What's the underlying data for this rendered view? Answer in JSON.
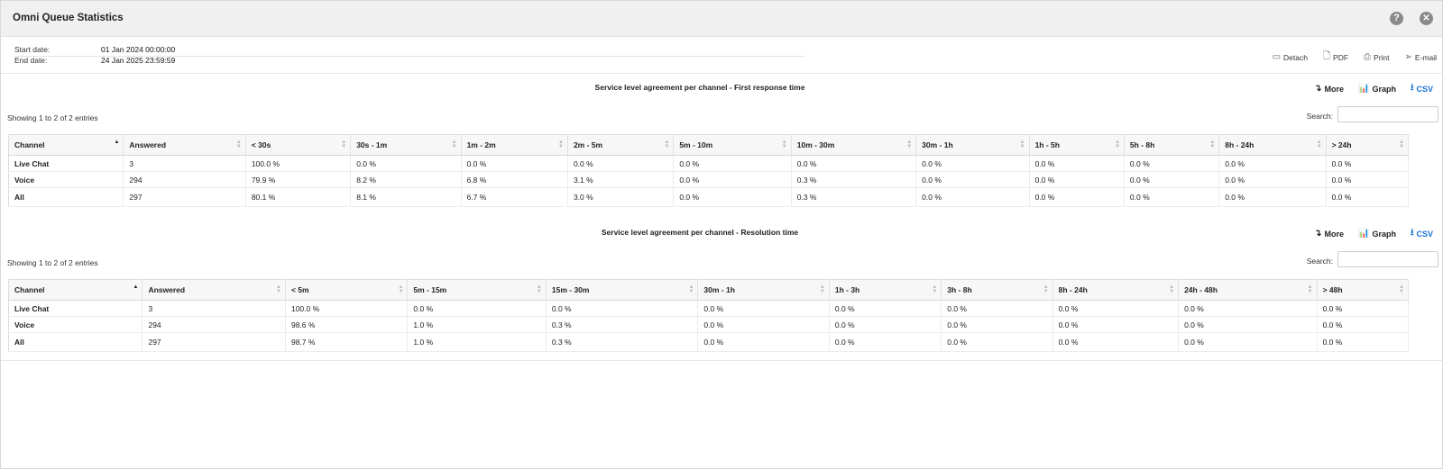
{
  "window": {
    "title": "Omni Queue Statistics",
    "help_icon": "help-icon",
    "close_icon": "close-icon"
  },
  "meta": {
    "start_label": "Start date:",
    "start_value": "01 Jan 2024 00:00:00",
    "end_label": "End date:",
    "end_value": "24 Jan 2025 23:59:59"
  },
  "actions": {
    "detach": "Detach",
    "pdf": "PDF",
    "print": "Print",
    "email": "E-mail"
  },
  "section_actions": {
    "more": "More",
    "graph": "Graph",
    "csv": "CSV"
  },
  "colors": {
    "csv": "#1a73d9",
    "graph_icon": "#d9534f"
  },
  "sec1": {
    "title": "Service level agreement per channel - First response time",
    "showing": "Showing 1 to 2 of 2 entries",
    "search_label": "Search:",
    "headers": [
      "Channel",
      "Answered",
      "< 30s",
      "30s - 1m",
      "1m - 2m",
      "2m - 5m",
      "5m - 10m",
      "10m - 30m",
      "30m - 1h",
      "1h - 5h",
      "5h - 8h",
      "8h - 24h",
      "> 24h"
    ],
    "rows": [
      [
        "Live Chat",
        "3",
        "100.0 %",
        "0.0 %",
        "0.0 %",
        "0.0 %",
        "0.0 %",
        "0.0 %",
        "0.0 %",
        "0.0 %",
        "0.0 %",
        "0.0 %",
        "0.0 %"
      ],
      [
        "Voice",
        "294",
        "79.9 %",
        "8.2 %",
        "6.8 %",
        "3.1 %",
        "0.0 %",
        "0.3 %",
        "0.0 %",
        "0.0 %",
        "0.0 %",
        "0.0 %",
        "0.0 %"
      ]
    ],
    "total": [
      "All",
      "297",
      "80.1 %",
      "8.1 %",
      "6.7 %",
      "3.0 %",
      "0.0 %",
      "0.3 %",
      "0.0 %",
      "0.0 %",
      "0.0 %",
      "0.0 %",
      "0.0 %"
    ]
  },
  "sec2": {
    "title": "Service level agreement per channel - Resolution time",
    "showing": "Showing 1 to 2 of 2 entries",
    "search_label": "Search:",
    "headers": [
      "Channel",
      "Answered",
      "< 5m",
      "5m - 15m",
      "15m - 30m",
      "30m - 1h",
      "1h - 3h",
      "3h - 8h",
      "8h - 24h",
      "24h - 48h",
      "> 48h"
    ],
    "rows": [
      [
        "Live Chat",
        "3",
        "100.0 %",
        "0.0 %",
        "0.0 %",
        "0.0 %",
        "0.0 %",
        "0.0 %",
        "0.0 %",
        "0.0 %",
        "0.0 %"
      ],
      [
        "Voice",
        "294",
        "98.6 %",
        "1.0 %",
        "0.3 %",
        "0.0 %",
        "0.0 %",
        "0.0 %",
        "0.0 %",
        "0.0 %",
        "0.0 %"
      ]
    ],
    "total": [
      "All",
      "297",
      "98.7 %",
      "1.0 %",
      "0.3 %",
      "0.0 %",
      "0.0 %",
      "0.0 %",
      "0.0 %",
      "0.0 %",
      "0.0 %"
    ]
  }
}
